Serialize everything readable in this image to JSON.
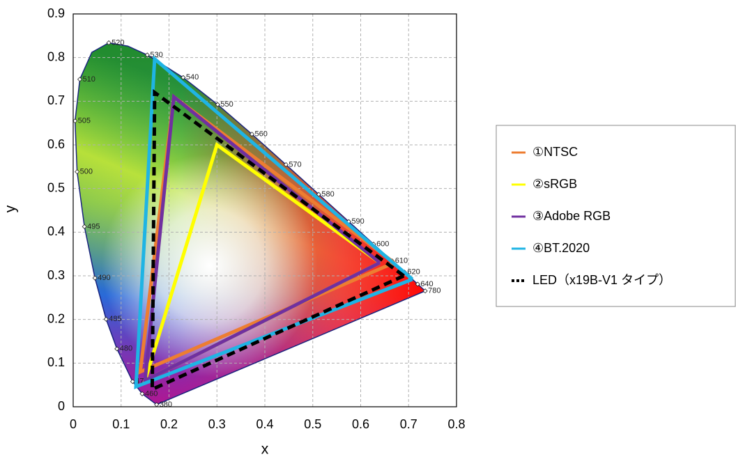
{
  "chart_data": {
    "type": "line",
    "x_label": "x",
    "y_label": "y",
    "xlim": [
      0,
      0.8
    ],
    "ylim": [
      0,
      0.9
    ],
    "xticks": [
      0,
      0.1,
      0.2,
      0.3,
      0.4,
      0.5,
      0.6,
      0.7,
      0.8
    ],
    "yticks": [
      0,
      0.1,
      0.2,
      0.3,
      0.4,
      0.5,
      0.6,
      0.7,
      0.8,
      0.9
    ],
    "grid": true,
    "legend": "right",
    "locus": {
      "x": [
        0.1741,
        0.144,
        0.1241,
        0.0913,
        0.0687,
        0.0454,
        0.0235,
        0.0082,
        0.0039,
        0.0139,
        0.0389,
        0.0743,
        0.1142,
        0.1547,
        0.2296,
        0.3016,
        0.3731,
        0.4441,
        0.5125,
        0.5752,
        0.627,
        0.6658,
        0.6915,
        0.719,
        0.7347
      ],
      "y": [
        0.005,
        0.0297,
        0.0578,
        0.1327,
        0.2007,
        0.295,
        0.4127,
        0.5384,
        0.6548,
        0.7502,
        0.812,
        0.8338,
        0.8262,
        0.8059,
        0.7543,
        0.6923,
        0.6245,
        0.5547,
        0.4866,
        0.4242,
        0.3725,
        0.334,
        0.3083,
        0.2809,
        0.2653
      ],
      "wavelengths": [
        380,
        460,
        470,
        480,
        485,
        490,
        495,
        500,
        505,
        510,
        null,
        520,
        null,
        530,
        540,
        550,
        560,
        570,
        580,
        590,
        600,
        610,
        620,
        640,
        780
      ]
    },
    "series": [
      {
        "name": "①NTSC",
        "color": "#ed7d31",
        "dash": false,
        "x": [
          0.67,
          0.21,
          0.14,
          0.67
        ],
        "values": [
          0.33,
          0.71,
          0.08,
          0.33
        ]
      },
      {
        "name": "②sRGB",
        "color": "#ffff00",
        "dash": false,
        "x": [
          0.64,
          0.3,
          0.15,
          0.64
        ],
        "values": [
          0.33,
          0.6,
          0.06,
          0.33
        ]
      },
      {
        "name": "③Adobe RGB",
        "color": "#7030a0",
        "dash": false,
        "x": [
          0.64,
          0.21,
          0.15,
          0.64
        ],
        "values": [
          0.33,
          0.71,
          0.06,
          0.33
        ]
      },
      {
        "name": "④BT.2020",
        "color": "#1fb4e4",
        "dash": false,
        "x": [
          0.708,
          0.17,
          0.131,
          0.708
        ],
        "values": [
          0.292,
          0.797,
          0.046,
          0.292
        ]
      },
      {
        "name": "LED（x19B-V1 タイプ）",
        "color": "#000000",
        "dash": true,
        "x": [
          0.69,
          0.17,
          0.165,
          0.69
        ],
        "values": [
          0.3,
          0.72,
          0.04,
          0.3
        ]
      }
    ]
  }
}
